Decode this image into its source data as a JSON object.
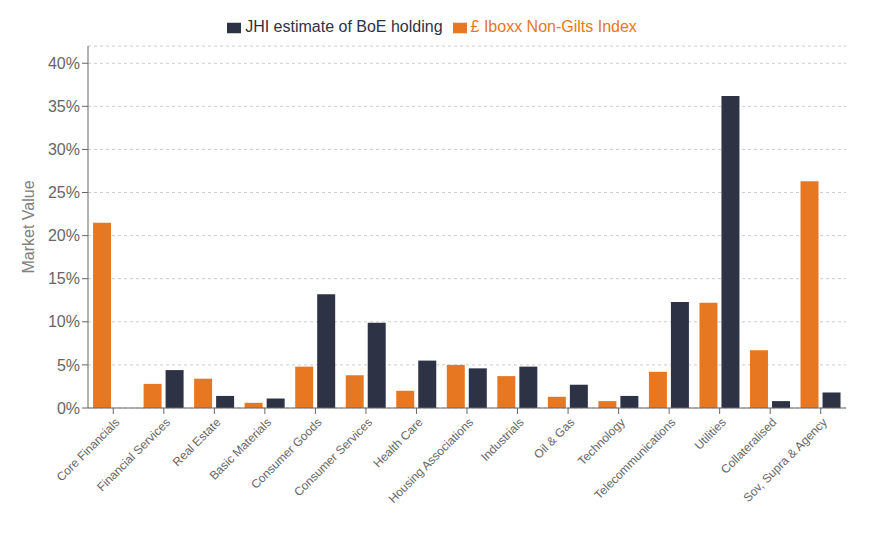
{
  "chart_data": {
    "type": "bar",
    "categories": [
      "Core Financials",
      "Financial Services",
      "Real Estate",
      "Basic Materials",
      "Consumer Goods",
      "Consumer Services",
      "Health Care",
      "Housing Associations",
      "Industrials",
      "Oil & Gas",
      "Technology",
      "Telecommunications",
      "Utilities",
      "Collateralised",
      "Sov, Supra & Agency"
    ],
    "series": [
      {
        "name": "£ Iboxx Non-Gilts Index",
        "color": "#E87722",
        "values": [
          21.5,
          2.8,
          3.4,
          0.6,
          4.8,
          3.8,
          2.0,
          5.0,
          3.7,
          1.3,
          0.8,
          4.2,
          12.2,
          6.7,
          26.3
        ]
      },
      {
        "name": "JHI estimate of BoE holding",
        "color": "#2E3245",
        "values": [
          0.0,
          4.4,
          1.4,
          1.1,
          13.2,
          9.9,
          5.5,
          4.6,
          4.8,
          2.7,
          1.4,
          12.3,
          36.2,
          0.8,
          1.8
        ]
      }
    ],
    "ylabel": "Market Value",
    "ylim": [
      0,
      42
    ],
    "yticks": [
      {
        "value": 0,
        "label": "0%"
      },
      {
        "value": 5,
        "label": "5%"
      },
      {
        "value": 10,
        "label": "10%"
      },
      {
        "value": 15,
        "label": "15%"
      },
      {
        "value": 20,
        "label": "20%"
      },
      {
        "value": 25,
        "label": "25%"
      },
      {
        "value": 30,
        "label": "30%"
      },
      {
        "value": 35,
        "label": "35%"
      },
      {
        "value": 40,
        "label": "40%"
      }
    ],
    "grid": true,
    "legend": "top"
  }
}
